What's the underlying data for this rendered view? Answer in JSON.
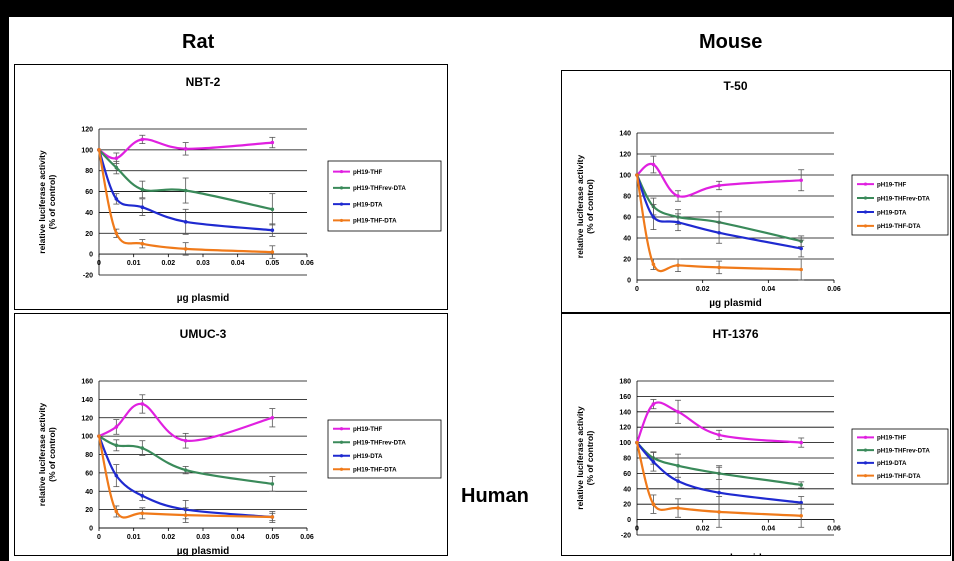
{
  "headers": {
    "rat": "Rat",
    "mouse": "Mouse",
    "human": "Human"
  },
  "colors": {
    "pH19-THF": "#e020e0",
    "pH19-THFrev-DTA": "#3a8a5a",
    "pH19-DTA": "#1f2ad0",
    "pH19-THF-DTA": "#f07a1a"
  },
  "chart_data": [
    {
      "type": "line",
      "title": "NBT-2",
      "xlabel": "µg plasmid",
      "ylabel": "relative luciferase activity (% of control)",
      "xlim": [
        0,
        0.06
      ],
      "ylim": [
        -20,
        120
      ],
      "xticks": [
        "0",
        "0.01",
        "0.02",
        "0.03",
        "0.04",
        "0.05",
        "0.06"
      ],
      "yticks": [
        "-20",
        "0",
        "20",
        "40",
        "60",
        "80",
        "100",
        "120"
      ],
      "x": [
        0,
        0.005,
        0.0125,
        0.025,
        0.05
      ],
      "series": [
        {
          "name": "pH19-THF",
          "values": [
            100,
            92,
            110,
            101,
            107
          ],
          "errors": [
            0,
            5,
            4,
            6,
            5
          ]
        },
        {
          "name": "pH19-THFrev-DTA",
          "values": [
            100,
            83,
            62,
            61,
            43
          ],
          "errors": [
            0,
            6,
            8,
            12,
            15
          ]
        },
        {
          "name": "pH19-DTA",
          "values": [
            100,
            53,
            45,
            31,
            23
          ],
          "errors": [
            0,
            5,
            8,
            12,
            6
          ]
        },
        {
          "name": "pH19-THF-DTA",
          "values": [
            100,
            20,
            10,
            5,
            2
          ],
          "errors": [
            0,
            4,
            4,
            6,
            6
          ]
        }
      ]
    },
    {
      "type": "line",
      "title": "T-50",
      "xlabel": "µg plasmid",
      "ylabel": "relative luciferase activity (% of control)",
      "xlim": [
        0,
        0.06
      ],
      "ylim": [
        0,
        140
      ],
      "xticks": [
        "0",
        "0.02",
        "0.04",
        "0.06"
      ],
      "yticks": [
        "0",
        "20",
        "40",
        "60",
        "80",
        "100",
        "120",
        "140"
      ],
      "x": [
        0,
        0.005,
        0.0125,
        0.025,
        0.05
      ],
      "series": [
        {
          "name": "pH19-THF",
          "values": [
            100,
            110,
            80,
            90,
            95
          ],
          "errors": [
            0,
            8,
            5,
            4,
            10
          ]
        },
        {
          "name": "pH19-THFrev-DTA",
          "values": [
            100,
            70,
            60,
            55,
            37
          ],
          "errors": [
            0,
            8,
            7,
            10,
            5
          ]
        },
        {
          "name": "pH19-DTA",
          "values": [
            100,
            60,
            55,
            45,
            30
          ],
          "errors": [
            0,
            12,
            8,
            10,
            8
          ]
        },
        {
          "name": "pH19-THF-DTA",
          "values": [
            100,
            15,
            14,
            12,
            10
          ],
          "errors": [
            0,
            5,
            6,
            6,
            10
          ]
        }
      ]
    },
    {
      "type": "line",
      "title": "UMUC-3",
      "xlabel": "µg plasmid",
      "ylabel": "relative luciferase activity (% of control)",
      "xlim": [
        0,
        0.06
      ],
      "ylim": [
        0,
        160
      ],
      "xticks": [
        "0",
        "0.01",
        "0.02",
        "0.03",
        "0.04",
        "0.05",
        "0.06"
      ],
      "yticks": [
        "0",
        "20",
        "40",
        "60",
        "80",
        "100",
        "120",
        "140",
        "160"
      ],
      "x": [
        0,
        0.005,
        0.0125,
        0.025,
        0.05
      ],
      "series": [
        {
          "name": "pH19-THF",
          "values": [
            100,
            110,
            135,
            95,
            120
          ],
          "errors": [
            0,
            8,
            10,
            8,
            10
          ]
        },
        {
          "name": "pH19-THFrev-DTA",
          "values": [
            100,
            90,
            87,
            63,
            48
          ],
          "errors": [
            0,
            6,
            8,
            4,
            8
          ]
        },
        {
          "name": "pH19-DTA",
          "values": [
            100,
            57,
            35,
            20,
            12
          ],
          "errors": [
            0,
            12,
            5,
            10,
            4
          ]
        },
        {
          "name": "pH19-THF-DTA",
          "values": [
            100,
            18,
            16,
            14,
            12
          ],
          "errors": [
            0,
            6,
            6,
            8,
            6
          ]
        }
      ]
    },
    {
      "type": "line",
      "title": "HT-1376",
      "xlabel": "µg plasmid",
      "ylabel": "relative luciferase activity (% of control)",
      "xlim": [
        0,
        0.06
      ],
      "ylim": [
        -20,
        180
      ],
      "xticks": [
        "0",
        "0.02",
        "0.04",
        "0.06"
      ],
      "yticks": [
        "-20",
        "0",
        "20",
        "40",
        "60",
        "80",
        "100",
        "120",
        "140",
        "160",
        "180"
      ],
      "x": [
        0,
        0.005,
        0.0125,
        0.025,
        0.05
      ],
      "series": [
        {
          "name": "pH19-THF",
          "values": [
            100,
            150,
            140,
            110,
            100
          ],
          "errors": [
            0,
            6,
            15,
            6,
            6
          ]
        },
        {
          "name": "pH19-THFrev-DTA",
          "values": [
            100,
            80,
            70,
            60,
            45
          ],
          "errors": [
            0,
            8,
            15,
            8,
            4
          ]
        },
        {
          "name": "pH19-DTA",
          "values": [
            100,
            75,
            50,
            35,
            22
          ],
          "errors": [
            0,
            12,
            10,
            35,
            8
          ]
        },
        {
          "name": "pH19-THF-DTA",
          "values": [
            100,
            20,
            15,
            10,
            5
          ],
          "errors": [
            0,
            12,
            12,
            20,
            15
          ]
        }
      ]
    }
  ]
}
